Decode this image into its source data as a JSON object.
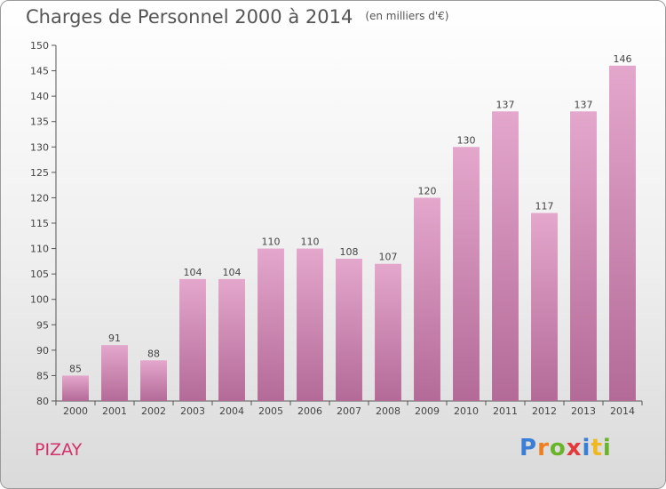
{
  "title": "Charges de Personnel 2000 à 2014",
  "subtitle": "(en milliers d'€)",
  "commune": "PIZAY",
  "logo": {
    "letters": [
      "P",
      "r",
      "o",
      "x",
      "i",
      "t",
      "i"
    ],
    "colors": [
      "#3a7fd5",
      "#f07f1e",
      "#6ab42a",
      "#e53838",
      "#3a7fd5",
      "#f0b81e",
      "#6ab42a"
    ]
  },
  "colors": {
    "bar_top": "#e4a7cc",
    "bar_bottom": "#b36a97",
    "commune": "#d4306a"
  },
  "chart_data": {
    "type": "bar",
    "title": "Charges de Personnel 2000 à 2014",
    "categories": [
      "2000",
      "2001",
      "2002",
      "2003",
      "2004",
      "2005",
      "2006",
      "2007",
      "2008",
      "2009",
      "2010",
      "2011",
      "2012",
      "2013",
      "2014"
    ],
    "values": [
      85,
      91,
      88,
      104,
      104,
      110,
      110,
      108,
      107,
      120,
      130,
      137,
      117,
      137,
      146
    ],
    "ylim": [
      80,
      150
    ],
    "yticks": [
      80,
      85,
      90,
      95,
      100,
      105,
      110,
      115,
      120,
      125,
      130,
      135,
      140,
      145,
      150
    ],
    "grid": false,
    "show_value_labels": true
  }
}
